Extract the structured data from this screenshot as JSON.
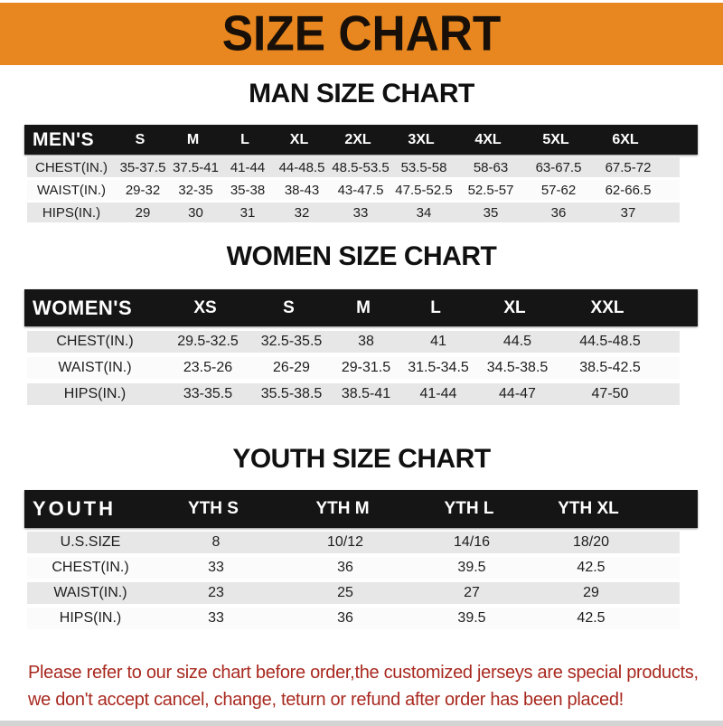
{
  "banner": {
    "title": "SIZE CHART",
    "bg_color": "#E8861F",
    "text_color": "#181008"
  },
  "chart_data": [
    {
      "type": "table",
      "title": "MAN SIZE CHART",
      "header_label": "MEN'S",
      "columns": [
        "S",
        "M",
        "L",
        "XL",
        "2XL",
        "3XL",
        "4XL",
        "5XL",
        "6XL"
      ],
      "rows": [
        {
          "label": "CHEST(IN.)",
          "values": [
            "35-37.5",
            "37.5-41",
            "41-44",
            "44-48.5",
            "48.5-53.5",
            "53.5-58",
            "58-63",
            "63-67.5",
            "67.5-72"
          ]
        },
        {
          "label": "WAIST(IN.)",
          "values": [
            "29-32",
            "32-35",
            "35-38",
            "38-43",
            "43-47.5",
            "47.5-52.5",
            "52.5-57",
            "57-62",
            "62-66.5"
          ]
        },
        {
          "label": "HIPS(IN.)",
          "values": [
            "29",
            "30",
            "31",
            "32",
            "33",
            "34",
            "35",
            "36",
            "37"
          ]
        }
      ]
    },
    {
      "type": "table",
      "title": "WOMEN SIZE CHART",
      "header_label": "WOMEN'S",
      "columns": [
        "XS",
        "S",
        "M",
        "L",
        "XL",
        "XXL"
      ],
      "rows": [
        {
          "label": "CHEST(IN.)",
          "values": [
            "29.5-32.5",
            "32.5-35.5",
            "38",
            "41",
            "44.5",
            "44.5-48.5"
          ]
        },
        {
          "label": "WAIST(IN.)",
          "values": [
            "23.5-26",
            "26-29",
            "29-31.5",
            "31.5-34.5",
            "34.5-38.5",
            "38.5-42.5"
          ]
        },
        {
          "label": "HIPS(IN.)",
          "values": [
            "33-35.5",
            "35.5-38.5",
            "38.5-41",
            "41-44",
            "44-47",
            "47-50"
          ]
        }
      ]
    },
    {
      "type": "table",
      "title": "YOUTH SIZE CHART",
      "header_label": "YOUTH",
      "columns": [
        "YTH S",
        "YTH M",
        "YTH L",
        "YTH XL"
      ],
      "rows": [
        {
          "label": "U.S.SIZE",
          "values": [
            "8",
            "10/12",
            "14/16",
            "18/20"
          ]
        },
        {
          "label": "CHEST(IN.)",
          "values": [
            "33",
            "36",
            "39.5",
            "42.5"
          ]
        },
        {
          "label": "WAIST(IN.)",
          "values": [
            "23",
            "25",
            "27",
            "29"
          ]
        },
        {
          "label": "HIPS(IN.)",
          "values": [
            "33",
            "36",
            "39.5",
            "42.5"
          ]
        }
      ]
    }
  ],
  "footer": {
    "line1": "Please refer to our size chart before order,the customized jerseys are special products,",
    "line2": "we don't accept cancel, change, teturn or refund after order has been placed!",
    "text_color": "#A8291F"
  },
  "colors": {
    "banner_bg": "#E8861F",
    "table_header_bar": "#151515",
    "row_gray": "#E7E7E7",
    "row_white": "#FBFBFB",
    "footer_text": "#A8291F"
  }
}
